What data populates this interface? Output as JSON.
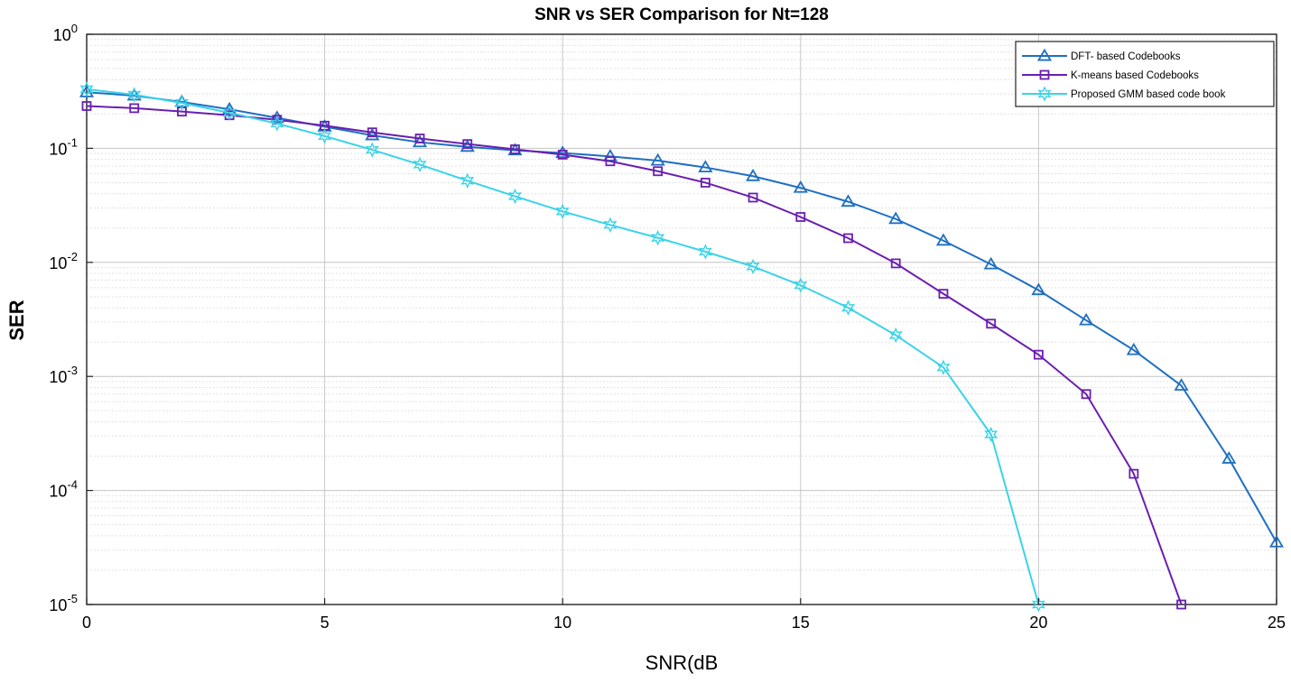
{
  "chart_data": {
    "type": "line",
    "title": "SNR vs SER Comparison for Nt=128",
    "xlabel": "SNR(dB",
    "ylabel": "SER",
    "xlim": [
      0,
      25
    ],
    "ylim": [
      1e-05,
      1
    ],
    "yscale": "log",
    "grid": true,
    "legend_position": "top-right",
    "x_ticks": [
      "0",
      "5",
      "10",
      "15",
      "20",
      "25"
    ],
    "x_tick_values": [
      0,
      5,
      10,
      15,
      20,
      25
    ],
    "y_ticks": [
      {
        "base": "10",
        "exp": "0",
        "value": 1
      },
      {
        "base": "10",
        "exp": "-1",
        "value": 0.1
      },
      {
        "base": "10",
        "exp": "-2",
        "value": 0.01
      },
      {
        "base": "10",
        "exp": "-3",
        "value": 0.001
      },
      {
        "base": "10",
        "exp": "-4",
        "value": 0.0001
      },
      {
        "base": "10",
        "exp": "-5",
        "value": 1e-05
      }
    ],
    "series": [
      {
        "name": "DFT- based Codebooks",
        "color": "#1f6fc2",
        "marker": "triangle",
        "x": [
          0,
          1,
          2,
          3,
          4,
          5,
          6,
          7,
          8,
          9,
          10,
          11,
          12,
          13,
          14,
          15,
          16,
          17,
          18,
          19,
          20,
          21,
          22,
          23,
          24,
          25
        ],
        "y": [
          0.31,
          0.29,
          0.255,
          0.22,
          0.185,
          0.155,
          0.13,
          0.113,
          0.103,
          0.096,
          0.091,
          0.085,
          0.078,
          0.068,
          0.057,
          0.045,
          0.034,
          0.024,
          0.0155,
          0.0096,
          0.0057,
          0.0031,
          0.0017,
          0.00083,
          0.00019,
          3.5e-05
        ]
      },
      {
        "name": "K-means based Codebooks",
        "color": "#6a1fb0",
        "marker": "square",
        "x": [
          0,
          1,
          2,
          3,
          4,
          5,
          6,
          7,
          8,
          9,
          10,
          11,
          12,
          13,
          14,
          15,
          16,
          17,
          18,
          19,
          20,
          21,
          22,
          23
        ],
        "y": [
          0.235,
          0.225,
          0.21,
          0.195,
          0.178,
          0.158,
          0.138,
          0.122,
          0.109,
          0.098,
          0.088,
          0.077,
          0.063,
          0.05,
          0.037,
          0.025,
          0.0163,
          0.0098,
          0.0053,
          0.0029,
          0.00155,
          0.0007,
          0.00014,
          1e-05
        ]
      },
      {
        "name": "Proposed GMM based code book",
        "color": "#3ad3e8",
        "marker": "hexagram",
        "x": [
          0,
          1,
          2,
          3,
          4,
          5,
          6,
          7,
          8,
          9,
          10,
          11,
          12,
          13,
          14,
          15,
          16,
          17,
          18,
          19,
          20
        ],
        "y": [
          0.33,
          0.295,
          0.25,
          0.205,
          0.165,
          0.128,
          0.097,
          0.072,
          0.052,
          0.038,
          0.028,
          0.0213,
          0.0164,
          0.0124,
          0.0092,
          0.0063,
          0.004,
          0.0023,
          0.0012,
          0.00031,
          1e-05
        ]
      }
    ]
  }
}
